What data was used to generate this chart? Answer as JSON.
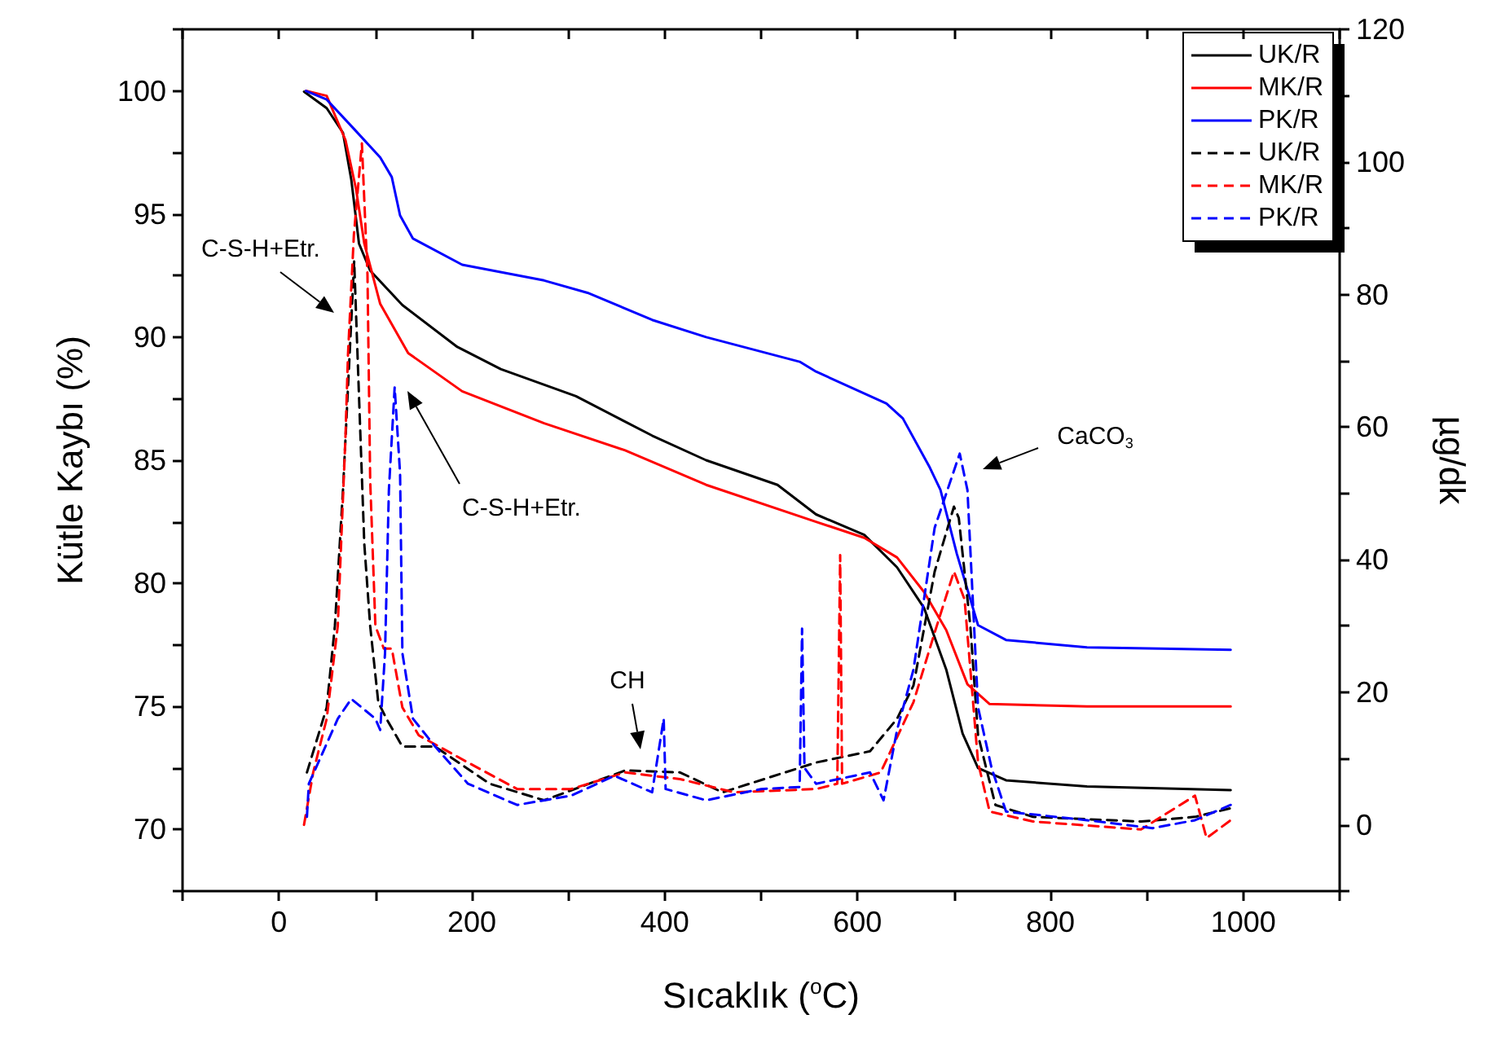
{
  "chart_data": {
    "type": "line",
    "xlabel": "Sıcaklık ($^{o}$C)",
    "ylabel": "Kütle Kaybı (%)",
    "y2label": "µg/dk",
    "xlim": [
      -100,
      1100
    ],
    "xticks": [
      {
        "value": -100,
        "label": null
      },
      0,
      {
        "value": 100,
        "label": null
      },
      200,
      {
        "value": 300,
        "label": null
      },
      400,
      {
        "value": 500,
        "label": null
      },
      600,
      {
        "value": 700,
        "label": null
      },
      800,
      {
        "value": 900,
        "label": null
      },
      1000,
      {
        "value": 1100,
        "label": null
      }
    ],
    "ylim": [
      67.5,
      102.5
    ],
    "yticks": [
      {
        "value": 67.5,
        "label": null
      },
      70,
      {
        "value": 72.5,
        "label": null
      },
      75,
      {
        "value": 77.5,
        "label": null
      },
      80,
      {
        "value": 82.5,
        "label": null
      },
      85,
      {
        "value": 87.5,
        "label": null
      },
      90,
      {
        "value": 92.5,
        "label": null
      },
      95,
      {
        "value": 97.5,
        "label": null
      },
      100,
      {
        "value": 102.5,
        "label": null
      }
    ],
    "y2lim": [
      -10,
      120
    ],
    "y2ticks": [
      {
        "value": -10,
        "label": null
      },
      0,
      {
        "value": 10,
        "label": null
      },
      20,
      {
        "value": 30,
        "label": null
      },
      40,
      {
        "value": 50,
        "label": null
      },
      60,
      {
        "value": 70,
        "label": null
      },
      80,
      {
        "value": 90,
        "label": null
      },
      100,
      {
        "value": 110,
        "label": null
      },
      120
    ],
    "grid": false,
    "legend": "top right",
    "series": [
      {
        "name": "UK/R",
        "color": "#000000",
        "line_style": "solid",
        "x": [
          26,
          49.5,
          66.4,
          75,
          83,
          94.6,
          128,
          185,
          230,
          308,
          387,
          443,
          517,
          557,
          607,
          641,
          669,
          692,
          709,
          725,
          754,
          838,
          987
        ],
        "values": [
          99.97,
          99.3,
          98.3,
          96.4,
          93.8,
          92.7,
          91.3,
          89.6,
          88.7,
          87.6,
          86.0,
          85.0,
          84.0,
          82.8,
          81.97,
          80.65,
          79.0,
          76.5,
          73.9,
          72.5,
          72.0,
          71.75,
          71.6
        ]
      },
      {
        "name": "MK/R",
        "color": "#ff0000",
        "line_style": "solid",
        "x": [
          28,
          49.5,
          69,
          80,
          88.5,
          105,
          134,
          190,
          275,
          359,
          443,
          557,
          607,
          641,
          669,
          692,
          714,
          737,
          838,
          987
        ],
        "values": [
          100,
          99.8,
          98.0,
          96.0,
          93.8,
          91.35,
          89.35,
          87.8,
          86.5,
          85.4,
          84.0,
          82.5,
          81.85,
          81.05,
          79.65,
          78.1,
          75.9,
          75.1,
          75.0,
          75.0
        ]
      },
      {
        "name": "PK/R",
        "color": "#0000ff",
        "line_style": "solid",
        "x": [
          28,
          49.5,
          77.7,
          105,
          117,
          125.6,
          139,
          190,
          275,
          320,
          387,
          443,
          540,
          557,
          630,
          647,
          675,
          686,
          703,
          725,
          754,
          838,
          987
        ],
        "values": [
          100,
          99.65,
          98.46,
          97.3,
          96.5,
          94.94,
          94.0,
          92.94,
          92.3,
          91.8,
          90.7,
          90.0,
          89.0,
          88.6,
          87.3,
          86.7,
          84.7,
          83.8,
          81.2,
          78.3,
          77.7,
          77.4,
          77.3
        ]
      },
      {
        "name": "UK/R",
        "color": "#000000",
        "line_style": "dashed",
        "axis": "y2",
        "x": [
          29,
          49.5,
          58,
          66.4,
          78,
          88.5,
          94.6,
          103,
          111.5,
          128,
          162,
          218.5,
          275,
          359,
          416,
          460,
          557,
          613,
          641,
          658,
          680,
          700,
          705,
          717,
          725,
          743,
          782,
          894,
          950,
          987
        ],
        "values": [
          7.9,
          17.7,
          30,
          50.5,
          85,
          42.4,
          30,
          18.5,
          16,
          11.8,
          11.8,
          6.2,
          3.7,
          8.2,
          7.9,
          4.9,
          9.4,
          11.1,
          16,
          21,
          38.2,
          48,
          46.3,
          30,
          13.5,
          3,
          1.2,
          0.5,
          1.2,
          2.5
        ]
      },
      {
        "name": "MK/R",
        "color": "#ff0000",
        "line_style": "dashed",
        "axis": "y2",
        "x": [
          26,
          35.5,
          49.5,
          61,
          69,
          71.6,
          77.7,
          86,
          91.8,
          94.6,
          100,
          108.7,
          117,
          128,
          145,
          196,
          247,
          303,
          359,
          416,
          472,
          557,
          579,
          582,
          584,
          624,
          658,
          680,
          700,
          711,
          725,
          737,
          782,
          894,
          950,
          962,
          987
        ],
        "values": [
          0,
          7.9,
          16,
          30,
          58.6,
          71,
          89,
          102.8,
          83,
          52,
          30,
          26.6,
          26.6,
          17.7,
          13.5,
          9.4,
          5.4,
          5.4,
          7.9,
          6.9,
          4.9,
          5.4,
          6.2,
          40.7,
          6.2,
          7.9,
          18.5,
          29,
          38.2,
          34,
          9.4,
          2,
          0.5,
          -0.7,
          4.4,
          -2,
          0.7
        ]
      },
      {
        "name": "PK/R",
        "color": "#0000ff",
        "line_style": "dashed",
        "axis": "y2",
        "x": [
          29,
          31,
          61,
          75,
          100,
          105,
          110,
          114,
          120,
          125.6,
          128,
          139,
          162,
          196,
          247,
          303,
          348,
          387,
          399,
          401,
          443,
          500,
          540,
          542.5,
          545,
          557,
          613,
          627,
          641,
          658,
          680,
          706,
          714,
          725,
          739,
          754,
          838,
          906,
          950,
          987
        ],
        "values": [
          1.2,
          6.2,
          16,
          19,
          16,
          14.3,
          25.9,
          50.5,
          66,
          53,
          25.9,
          16,
          11.8,
          6.2,
          3,
          4.4,
          7.4,
          4.9,
          16,
          5.4,
          3.7,
          5.4,
          5.7,
          29.6,
          8.6,
          6.2,
          7.9,
          3.7,
          14.3,
          23.4,
          44.8,
          56,
          50.5,
          17.7,
          8.6,
          2,
          0.7,
          -0.5,
          0.7,
          3
        ]
      }
    ],
    "annotations": [
      "C-S-H+Etr.",
      "C-S-H+Etr.",
      "CH",
      "CaCO$_{3}$"
    ]
  }
}
